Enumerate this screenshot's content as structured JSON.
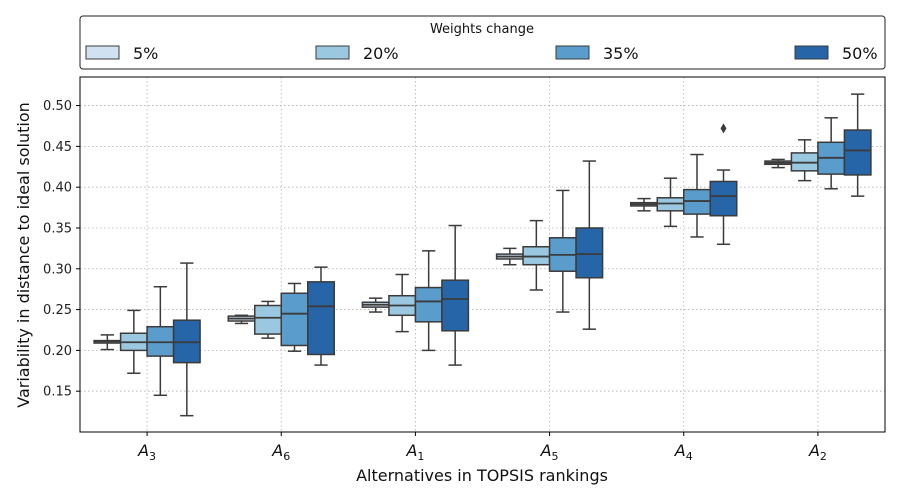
{
  "chart_data": {
    "type": "box",
    "xlabel": "Alternatives in TOPSIS rankings",
    "ylabel": "Variability in distance to ideal solution",
    "ylim": [
      0.1,
      0.535
    ],
    "yticks": [
      "0.15",
      "0.20",
      "0.25",
      "0.30",
      "0.35",
      "0.40",
      "0.45",
      "0.50"
    ],
    "grid": true,
    "legend": {
      "title": "Weights change",
      "placement": "top",
      "entries": [
        "5%",
        "20%",
        "35%",
        "50%"
      ]
    },
    "categories": [
      {
        "base": "A",
        "sub": "3"
      },
      {
        "base": "A",
        "sub": "6"
      },
      {
        "base": "A",
        "sub": "1"
      },
      {
        "base": "A",
        "sub": "5"
      },
      {
        "base": "A",
        "sub": "4"
      },
      {
        "base": "A",
        "sub": "2"
      }
    ],
    "series": [
      {
        "name": "5%",
        "color": "#d0e1f2",
        "boxes": [
          {
            "min": 0.201,
            "q1": 0.209,
            "median": 0.211,
            "q3": 0.212,
            "max": 0.219,
            "outliers": []
          },
          {
            "min": 0.233,
            "q1": 0.236,
            "median": 0.239,
            "q3": 0.242,
            "max": 0.243,
            "outliers": []
          },
          {
            "min": 0.247,
            "q1": 0.253,
            "median": 0.256,
            "q3": 0.259,
            "max": 0.264,
            "outliers": []
          },
          {
            "min": 0.305,
            "q1": 0.312,
            "median": 0.315,
            "q3": 0.318,
            "max": 0.325,
            "outliers": []
          },
          {
            "min": 0.371,
            "q1": 0.377,
            "median": 0.379,
            "q3": 0.381,
            "max": 0.386,
            "outliers": []
          },
          {
            "min": 0.424,
            "q1": 0.428,
            "median": 0.43,
            "q3": 0.432,
            "max": 0.434,
            "outliers": []
          }
        ]
      },
      {
        "name": "20%",
        "color": "#9ac8e0",
        "boxes": [
          {
            "min": 0.172,
            "q1": 0.2,
            "median": 0.21,
            "q3": 0.221,
            "max": 0.249,
            "outliers": []
          },
          {
            "min": 0.215,
            "q1": 0.22,
            "median": 0.24,
            "q3": 0.255,
            "max": 0.26,
            "outliers": []
          },
          {
            "min": 0.223,
            "q1": 0.243,
            "median": 0.255,
            "q3": 0.267,
            "max": 0.293,
            "outliers": []
          },
          {
            "min": 0.274,
            "q1": 0.305,
            "median": 0.315,
            "q3": 0.327,
            "max": 0.359,
            "outliers": []
          },
          {
            "min": 0.352,
            "q1": 0.371,
            "median": 0.38,
            "q3": 0.387,
            "max": 0.411,
            "outliers": []
          },
          {
            "min": 0.408,
            "q1": 0.42,
            "median": 0.43,
            "q3": 0.442,
            "max": 0.458,
            "outliers": []
          }
        ]
      },
      {
        "name": "35%",
        "color": "#5a9ccc",
        "boxes": [
          {
            "min": 0.145,
            "q1": 0.193,
            "median": 0.21,
            "q3": 0.229,
            "max": 0.278,
            "outliers": []
          },
          {
            "min": 0.199,
            "q1": 0.206,
            "median": 0.245,
            "q3": 0.27,
            "max": 0.282,
            "outliers": []
          },
          {
            "min": 0.2,
            "q1": 0.235,
            "median": 0.26,
            "q3": 0.277,
            "max": 0.322,
            "outliers": []
          },
          {
            "min": 0.247,
            "q1": 0.297,
            "median": 0.317,
            "q3": 0.338,
            "max": 0.396,
            "outliers": []
          },
          {
            "min": 0.339,
            "q1": 0.367,
            "median": 0.383,
            "q3": 0.397,
            "max": 0.44,
            "outliers": []
          },
          {
            "min": 0.398,
            "q1": 0.416,
            "median": 0.436,
            "q3": 0.455,
            "max": 0.485,
            "outliers": []
          }
        ]
      },
      {
        "name": "50%",
        "color": "#2565a8",
        "boxes": [
          {
            "min": 0.12,
            "q1": 0.185,
            "median": 0.21,
            "q3": 0.237,
            "max": 0.307,
            "outliers": []
          },
          {
            "min": 0.182,
            "q1": 0.195,
            "median": 0.254,
            "q3": 0.284,
            "max": 0.302,
            "outliers": []
          },
          {
            "min": 0.182,
            "q1": 0.224,
            "median": 0.263,
            "q3": 0.286,
            "max": 0.353,
            "outliers": []
          },
          {
            "min": 0.226,
            "q1": 0.289,
            "median": 0.318,
            "q3": 0.35,
            "max": 0.432,
            "outliers": []
          },
          {
            "min": 0.33,
            "q1": 0.365,
            "median": 0.389,
            "q3": 0.407,
            "max": 0.421,
            "outliers": [
              0.472
            ]
          },
          {
            "min": 0.389,
            "q1": 0.415,
            "median": 0.445,
            "q3": 0.47,
            "max": 0.514,
            "outliers": []
          }
        ]
      }
    ]
  }
}
